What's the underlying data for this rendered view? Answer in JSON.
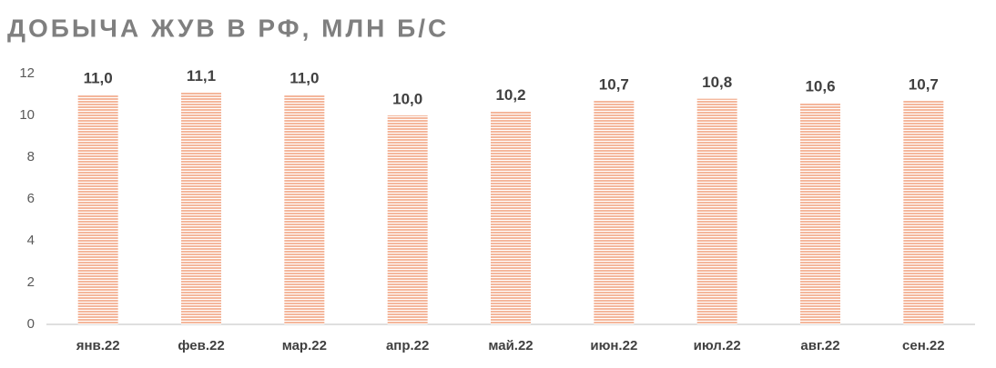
{
  "chart_data": {
    "type": "bar",
    "title": "ДОБЫЧА ЖУВ В РФ, МЛН Б/С",
    "categories": [
      "янв.22",
      "фев.22",
      "мар.22",
      "апр.22",
      "май.22",
      "июн.22",
      "июл.22",
      "авг.22",
      "сен.22"
    ],
    "values": [
      11.0,
      11.1,
      11.0,
      10.0,
      10.2,
      10.7,
      10.8,
      10.6,
      10.7
    ],
    "value_labels": [
      "11,0",
      "11,1",
      "11,0",
      "10,0",
      "10,2",
      "10,7",
      "10,8",
      "10,6",
      "10,7"
    ],
    "color": "#f4b79c",
    "ylim": [
      0,
      12
    ],
    "yticks": [
      0,
      2,
      4,
      6,
      8,
      10,
      12
    ],
    "grid": false
  }
}
